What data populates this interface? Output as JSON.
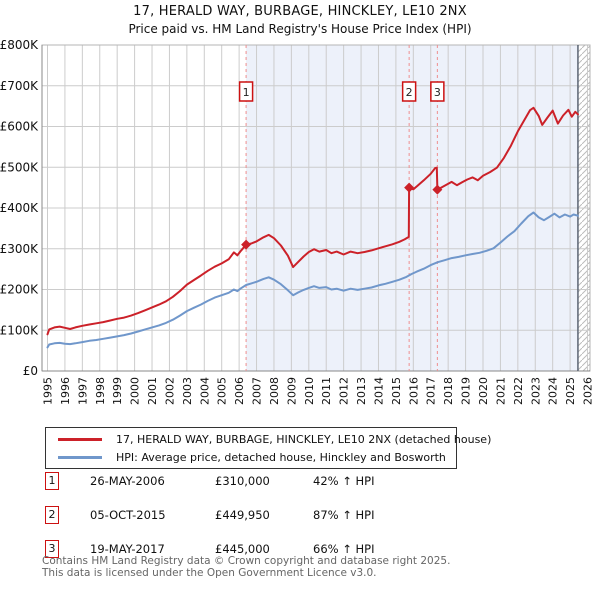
{
  "title": "17, HERALD WAY, BURBAGE, HINCKLEY, LE10 2NX",
  "subtitle": "Price paid vs. HM Land Registry's House Price Index (HPI)",
  "colors": {
    "property_line": "#cc2129",
    "hpi_line": "#7097cb",
    "marker_dash": "#ef8f8f",
    "marker_box_border": "#cc1111",
    "shade": "#edf1fa",
    "grid": "#cccccc",
    "plot_border": "#b5b5b5",
    "axis": "#888888",
    "hatch": "#bbbbbb",
    "hatch_edge": "#5a6472"
  },
  "chart_data": {
    "type": "line",
    "x_axis": {
      "min": 1995,
      "max": 2026.15,
      "tick_labels": [
        "1995",
        "1996",
        "1997",
        "1998",
        "1999",
        "2000",
        "2001",
        "2002",
        "2003",
        "2004",
        "2005",
        "2006",
        "2007",
        "2008",
        "2009",
        "2010",
        "2011",
        "2012",
        "2013",
        "2014",
        "2015",
        "2016",
        "2017",
        "2018",
        "2019",
        "2020",
        "2021",
        "2022",
        "2023",
        "2024",
        "2025",
        "2026"
      ]
    },
    "y_axis": {
      "min": 0,
      "max": 800,
      "unit": "GBP thousands",
      "tick_values": [
        0,
        100,
        200,
        300,
        400,
        500,
        600,
        700,
        800
      ],
      "tick_labels": [
        "£0",
        "£100K",
        "£200K",
        "£300K",
        "£400K",
        "£500K",
        "£600K",
        "£700K",
        "£800K"
      ]
    },
    "grid": true,
    "shade_start_year": 2006.4,
    "hatch_start_year": 2025.45,
    "series": [
      {
        "name": "17, HERALD WAY, BURBAGE, HINCKLEY, LE10 2NX (detached house)",
        "color": "#cc2129",
        "points": [
          [
            1995.0,
            90
          ],
          [
            1995.1,
            102
          ],
          [
            1995.4,
            107
          ],
          [
            1995.7,
            109
          ],
          [
            1996.0,
            106
          ],
          [
            1996.3,
            103
          ],
          [
            1996.6,
            107
          ],
          [
            1997.0,
            111
          ],
          [
            1997.4,
            114
          ],
          [
            1997.8,
            117
          ],
          [
            1998.2,
            120
          ],
          [
            1998.6,
            124
          ],
          [
            1999.0,
            128
          ],
          [
            1999.4,
            131
          ],
          [
            1999.8,
            136
          ],
          [
            2000.2,
            142
          ],
          [
            2000.6,
            149
          ],
          [
            2001.0,
            156
          ],
          [
            2001.4,
            163
          ],
          [
            2001.8,
            171
          ],
          [
            2002.2,
            182
          ],
          [
            2002.6,
            196
          ],
          [
            2003.0,
            212
          ],
          [
            2003.4,
            223
          ],
          [
            2003.8,
            234
          ],
          [
            2004.2,
            246
          ],
          [
            2004.6,
            256
          ],
          [
            2005.0,
            264
          ],
          [
            2005.4,
            274
          ],
          [
            2005.7,
            291
          ],
          [
            2005.9,
            284
          ],
          [
            2006.1,
            295
          ],
          [
            2006.4,
            310
          ],
          [
            2006.7,
            313
          ],
          [
            2007.0,
            318
          ],
          [
            2007.4,
            328
          ],
          [
            2007.7,
            334
          ],
          [
            2008.0,
            326
          ],
          [
            2008.4,
            308
          ],
          [
            2008.8,
            283
          ],
          [
            2009.1,
            255
          ],
          [
            2009.4,
            268
          ],
          [
            2009.7,
            281
          ],
          [
            2010.0,
            292
          ],
          [
            2010.3,
            299
          ],
          [
            2010.6,
            293
          ],
          [
            2011.0,
            297
          ],
          [
            2011.3,
            289
          ],
          [
            2011.6,
            293
          ],
          [
            2012.0,
            286
          ],
          [
            2012.4,
            293
          ],
          [
            2012.8,
            289
          ],
          [
            2013.2,
            292
          ],
          [
            2013.6,
            296
          ],
          [
            2014.0,
            301
          ],
          [
            2014.4,
            306
          ],
          [
            2014.8,
            311
          ],
          [
            2015.2,
            317
          ],
          [
            2015.5,
            323
          ],
          [
            2015.74,
            329
          ],
          [
            2015.76,
            450
          ],
          [
            2016.0,
            446
          ],
          [
            2016.2,
            453
          ],
          [
            2016.6,
            468
          ],
          [
            2017.0,
            484
          ],
          [
            2017.25,
            498
          ],
          [
            2017.35,
            499
          ],
          [
            2017.38,
            445
          ],
          [
            2017.6,
            450
          ],
          [
            2017.9,
            457
          ],
          [
            2018.2,
            464
          ],
          [
            2018.5,
            456
          ],
          [
            2018.8,
            463
          ],
          [
            2019.1,
            470
          ],
          [
            2019.4,
            475
          ],
          [
            2019.7,
            468
          ],
          [
            2020.0,
            479
          ],
          [
            2020.4,
            488
          ],
          [
            2020.8,
            499
          ],
          [
            2021.2,
            523
          ],
          [
            2021.6,
            553
          ],
          [
            2022.0,
            588
          ],
          [
            2022.4,
            618
          ],
          [
            2022.7,
            640
          ],
          [
            2022.9,
            646
          ],
          [
            2023.2,
            626
          ],
          [
            2023.4,
            604
          ],
          [
            2023.7,
            622
          ],
          [
            2024.0,
            639
          ],
          [
            2024.3,
            607
          ],
          [
            2024.6,
            627
          ],
          [
            2024.9,
            641
          ],
          [
            2025.1,
            624
          ],
          [
            2025.3,
            636
          ],
          [
            2025.45,
            630
          ]
        ]
      },
      {
        "name": "HPI: Average price, detached house, Hinckley and Bosworth",
        "color": "#7097cb",
        "points": [
          [
            1995.0,
            58
          ],
          [
            1995.1,
            65
          ],
          [
            1995.4,
            68
          ],
          [
            1995.7,
            69
          ],
          [
            1996.0,
            67
          ],
          [
            1996.3,
            66
          ],
          [
            1996.6,
            68
          ],
          [
            1997.0,
            71
          ],
          [
            1997.4,
            74
          ],
          [
            1997.8,
            76
          ],
          [
            1998.2,
            79
          ],
          [
            1998.6,
            82
          ],
          [
            1999.0,
            85
          ],
          [
            1999.4,
            88
          ],
          [
            1999.8,
            92
          ],
          [
            2000.2,
            97
          ],
          [
            2000.6,
            102
          ],
          [
            2001.0,
            107
          ],
          [
            2001.4,
            112
          ],
          [
            2001.8,
            118
          ],
          [
            2002.2,
            126
          ],
          [
            2002.6,
            136
          ],
          [
            2003.0,
            147
          ],
          [
            2003.4,
            155
          ],
          [
            2003.8,
            163
          ],
          [
            2004.2,
            172
          ],
          [
            2004.6,
            180
          ],
          [
            2005.0,
            186
          ],
          [
            2005.4,
            192
          ],
          [
            2005.7,
            200
          ],
          [
            2005.9,
            196
          ],
          [
            2006.1,
            203
          ],
          [
            2006.4,
            211
          ],
          [
            2006.7,
            215
          ],
          [
            2007.0,
            219
          ],
          [
            2007.4,
            226
          ],
          [
            2007.7,
            230
          ],
          [
            2008.0,
            224
          ],
          [
            2008.4,
            213
          ],
          [
            2008.8,
            198
          ],
          [
            2009.1,
            186
          ],
          [
            2009.4,
            193
          ],
          [
            2009.7,
            199
          ],
          [
            2010.0,
            204
          ],
          [
            2010.3,
            208
          ],
          [
            2010.6,
            204
          ],
          [
            2011.0,
            206
          ],
          [
            2011.3,
            200
          ],
          [
            2011.6,
            202
          ],
          [
            2012.0,
            197
          ],
          [
            2012.4,
            202
          ],
          [
            2012.8,
            199
          ],
          [
            2013.2,
            202
          ],
          [
            2013.6,
            205
          ],
          [
            2014.0,
            210
          ],
          [
            2014.4,
            214
          ],
          [
            2014.8,
            219
          ],
          [
            2015.2,
            224
          ],
          [
            2015.6,
            231
          ],
          [
            2015.9,
            238
          ],
          [
            2016.2,
            244
          ],
          [
            2016.6,
            251
          ],
          [
            2017.0,
            260
          ],
          [
            2017.4,
            267
          ],
          [
            2017.8,
            272
          ],
          [
            2018.2,
            277
          ],
          [
            2018.6,
            280
          ],
          [
            2019.0,
            284
          ],
          [
            2019.4,
            287
          ],
          [
            2019.8,
            290
          ],
          [
            2020.2,
            295
          ],
          [
            2020.6,
            301
          ],
          [
            2021.0,
            315
          ],
          [
            2021.4,
            330
          ],
          [
            2021.8,
            343
          ],
          [
            2022.2,
            362
          ],
          [
            2022.6,
            380
          ],
          [
            2022.9,
            389
          ],
          [
            2023.2,
            377
          ],
          [
            2023.5,
            370
          ],
          [
            2023.8,
            378
          ],
          [
            2024.1,
            386
          ],
          [
            2024.4,
            377
          ],
          [
            2024.7,
            384
          ],
          [
            2025.0,
            379
          ],
          [
            2025.2,
            384
          ],
          [
            2025.45,
            381
          ]
        ]
      }
    ],
    "sale_markers": [
      {
        "label": "1",
        "year": 2006.4,
        "value": 310
      },
      {
        "label": "2",
        "year": 2015.76,
        "value": 449.95
      },
      {
        "label": "3",
        "year": 2017.38,
        "value": 445
      }
    ]
  },
  "legend": {
    "items": [
      {
        "label": "17, HERALD WAY, BURBAGE, HINCKLEY, LE10 2NX (detached house)",
        "color": "#cc2129"
      },
      {
        "label": "HPI: Average price, detached house, Hinckley and Bosworth",
        "color": "#7097cb"
      }
    ]
  },
  "transactions": [
    {
      "num": "1",
      "date": "26-MAY-2006",
      "price": "£310,000",
      "hpi": "42% ↑ HPI"
    },
    {
      "num": "2",
      "date": "05-OCT-2015",
      "price": "£449,950",
      "hpi": "87% ↑ HPI"
    },
    {
      "num": "3",
      "date": "19-MAY-2017",
      "price": "£445,000",
      "hpi": "66% ↑ HPI"
    }
  ],
  "footer": {
    "line1": "Contains HM Land Registry data © Crown copyright and database right 2025.",
    "line2": "This data is licensed under the Open Government Licence v3.0."
  }
}
